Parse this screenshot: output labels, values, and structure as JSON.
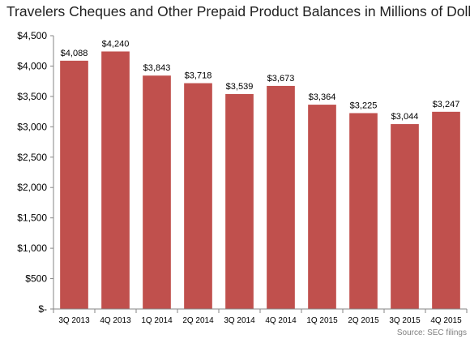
{
  "chart_data": {
    "type": "bar",
    "title": "Travelers Cheques and Other Prepaid Product Balances in Millions of Dollars",
    "categories": [
      "3Q 2013",
      "4Q 2013",
      "1Q 2014",
      "2Q 2014",
      "3Q 2014",
      "4Q 2014",
      "1Q 2015",
      "2Q 2015",
      "3Q 2015",
      "4Q 2015"
    ],
    "values": [
      4088,
      4240,
      3843,
      3718,
      3539,
      3673,
      3364,
      3225,
      3044,
      3247
    ],
    "data_labels": [
      "$4,088",
      "$4,240",
      "$3,843",
      "$3,718",
      "$3,539",
      "$3,673",
      "$3,364",
      "$3,225",
      "$3,044",
      "$3,247"
    ],
    "y_ticks": [
      0,
      500,
      1000,
      1500,
      2000,
      2500,
      3000,
      3500,
      4000,
      4500
    ],
    "y_tick_labels": [
      "$-",
      "$500",
      "$1,000",
      "$1,500",
      "$2,000",
      "$2,500",
      "$3,000",
      "$3,500",
      "$4,000",
      "$4,500"
    ],
    "ylim": [
      0,
      4500
    ],
    "xlabel": "",
    "ylabel": "",
    "grid": false,
    "legend": "none",
    "bar_color": "#c0504d",
    "source": "Source: SEC filings"
  }
}
